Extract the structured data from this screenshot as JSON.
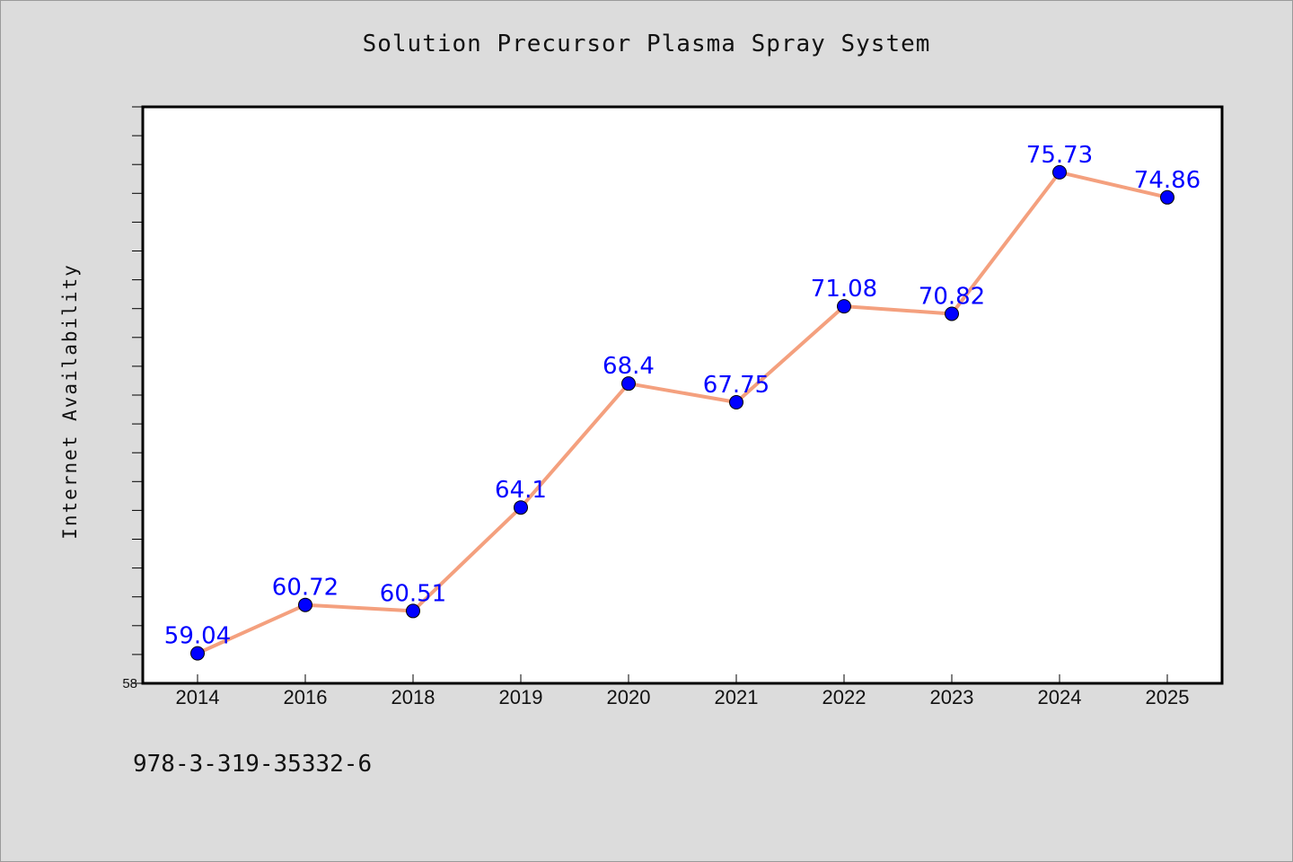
{
  "title": "Solution Precursor Plasma Spray System",
  "footer_text": "978-3-319-35332-6",
  "chart_data": {
    "type": "line",
    "title": "Solution Precursor Plasma Spray System",
    "xlabel": "",
    "ylabel": "Internet Availability",
    "categories": [
      "2014",
      "2016",
      "2018",
      "2019",
      "2020",
      "2021",
      "2022",
      "2023",
      "2024",
      "2025"
    ],
    "series": [
      {
        "values": [
          59.04,
          60.72,
          60.51,
          64.1,
          68.4,
          67.75,
          71.08,
          70.82,
          75.73,
          74.86
        ],
        "line_color": "#f4a07e",
        "marker_color": "#0000ff",
        "label_color": "#0000ff"
      }
    ],
    "ylim": [
      58,
      78
    ],
    "y_tick_labels_shown": [
      "58"
    ],
    "grid": false,
    "legend": "none",
    "data_labels": true
  }
}
